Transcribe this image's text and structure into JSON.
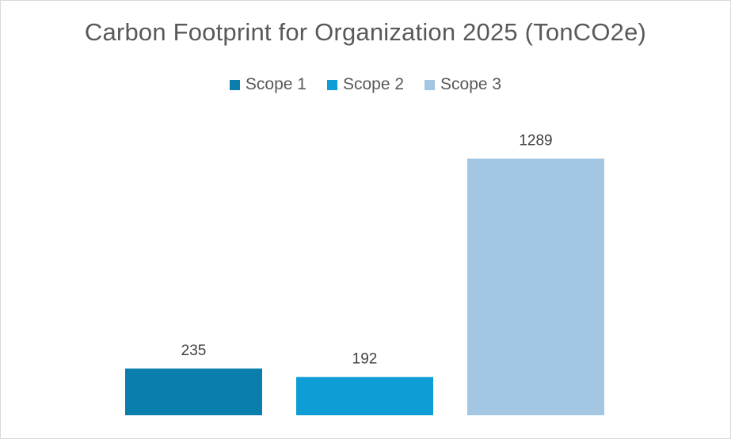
{
  "chart_data": {
    "type": "bar",
    "title": "Carbon Footprint for Organization 2025 (TonCO2e)",
    "categories": [
      "Scope 1",
      "Scope 2",
      "Scope 3"
    ],
    "values": [
      235,
      192,
      1289
    ],
    "colors": [
      "#0a7fab",
      "#0e9dd4",
      "#a3c6e3"
    ],
    "ylim": [
      0,
      1450
    ],
    "legend_position": "top",
    "grid": false,
    "data_labels": true
  }
}
